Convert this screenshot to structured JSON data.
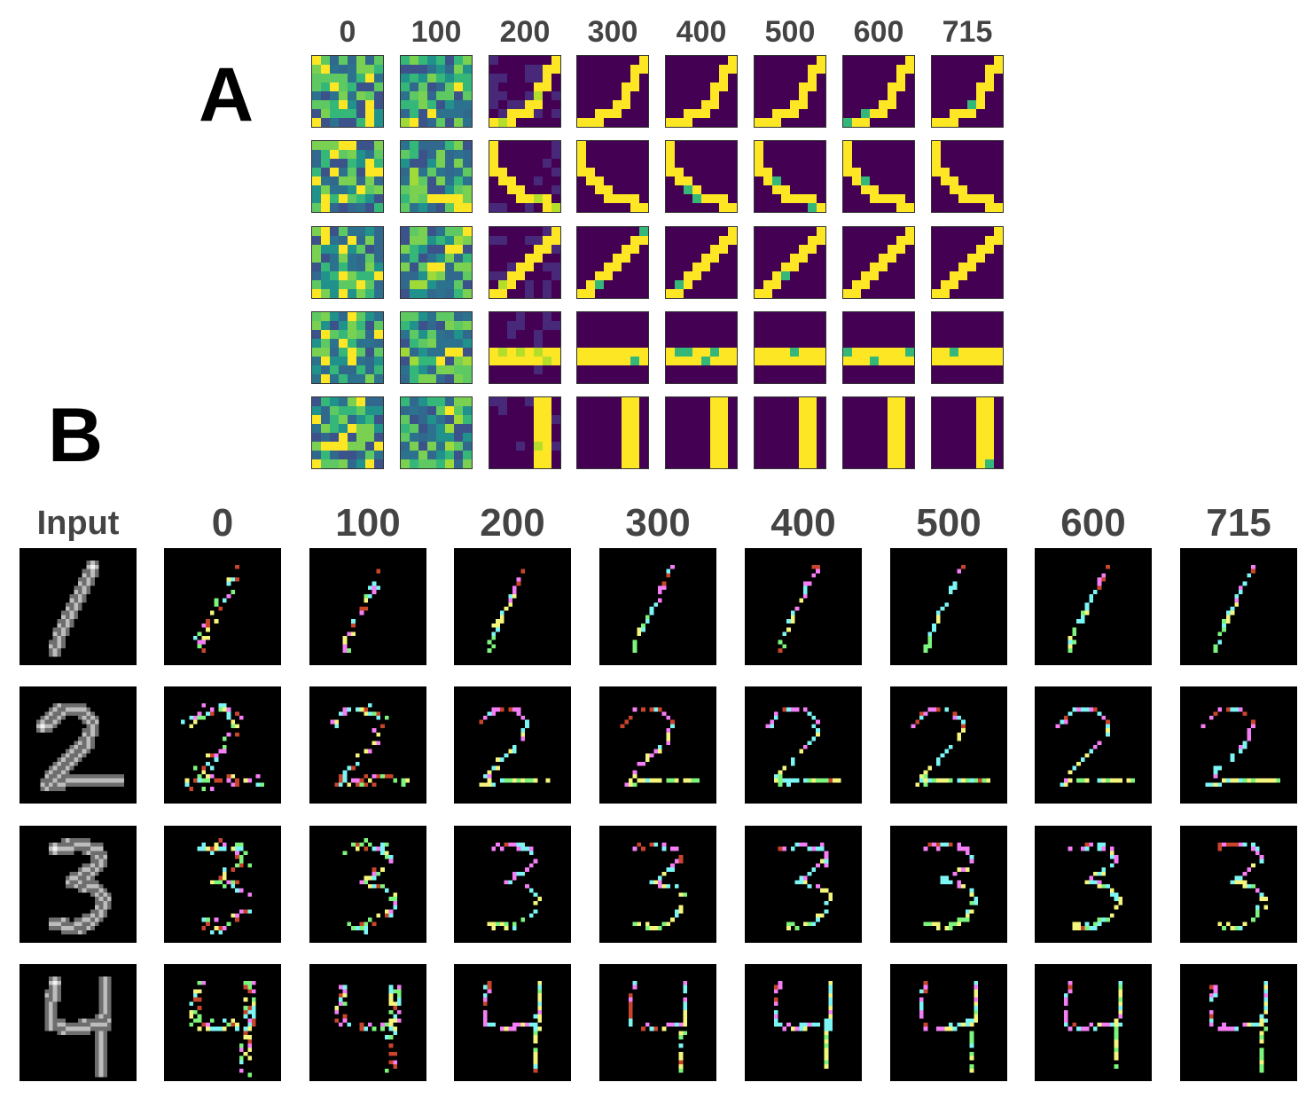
{
  "panels": {
    "a_label": "A",
    "b_label": "B"
  },
  "panel_a": {
    "column_labels": [
      "0",
      "100",
      "200",
      "300",
      "400",
      "500",
      "600",
      "715"
    ],
    "row_count": 5,
    "rows": [
      {
        "learned_pattern": "diagonal-arc-bottom-left-to-top-right"
      },
      {
        "learned_pattern": "curve-top-left-to-bottom-right"
      },
      {
        "learned_pattern": "diagonal-stroke-bottom-left-to-top-right"
      },
      {
        "learned_pattern": "horizontal-bar"
      },
      {
        "learned_pattern": "vertical-bar"
      }
    ],
    "colors": {
      "low": "#440154",
      "high": "#fde725",
      "mid": [
        "#21918c",
        "#3b528b",
        "#5ec962",
        "#2c728e",
        "#7ad151",
        "#31688e",
        "#35b779"
      ]
    }
  },
  "panel_b": {
    "input_label": "Input",
    "column_labels": [
      "0",
      "100",
      "200",
      "300",
      "400",
      "500",
      "600",
      "715"
    ],
    "digits": [
      "1",
      "2",
      "3",
      "4"
    ],
    "colors": {
      "background": "#000000",
      "red": "#c8452c",
      "pink": "#f57df5",
      "cyan": "#7cf5f5",
      "yellow": "#f5f57d",
      "green": "#7df57d",
      "input_stroke": "#f2f2f2"
    }
  }
}
